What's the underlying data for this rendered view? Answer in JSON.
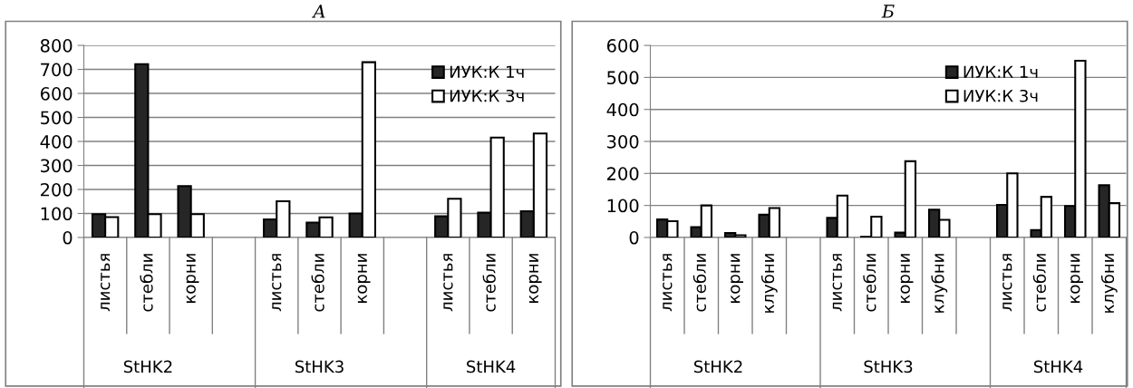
{
  "chart_data": [
    {
      "type": "bar",
      "title": "А",
      "categories": [
        "листья",
        "стебли",
        "корни",
        null,
        "листья",
        "стебли",
        "корни",
        null,
        "листья",
        "стебли",
        "корни"
      ],
      "series": [
        {
          "name": "ИУК:К 1ч",
          "color": "#262626",
          "values": [
            97,
            722,
            214,
            null,
            75,
            62,
            100,
            null,
            88,
            103,
            109
          ]
        },
        {
          "name": "ИУК:К 3ч",
          "color": "#ffffff",
          "values": [
            85,
            97,
            97,
            null,
            151,
            84,
            730,
            null,
            161,
            416,
            433
          ]
        }
      ],
      "annotations": [
        "StHK2",
        "StHK3",
        "StHK4"
      ],
      "ylim": [
        0,
        800
      ],
      "yticks": [
        0,
        100,
        200,
        300,
        400,
        500,
        600,
        700,
        800
      ],
      "grid": "y",
      "legend": "top right"
    },
    {
      "type": "bar",
      "title": "Б",
      "categories": [
        "листья",
        "стебли",
        "корни",
        "клубни",
        null,
        "листья",
        "стебли",
        "корни",
        "клубни",
        null,
        "листья",
        "стебли",
        "корни",
        "клубни"
      ],
      "series": [
        {
          "name": "ИУК:К 1ч",
          "color": "#262626",
          "values": [
            56,
            32,
            14,
            71,
            null,
            61,
            2,
            15,
            87,
            null,
            102,
            23,
            98,
            163
          ]
        },
        {
          "name": "ИУК:К 3ч",
          "color": "#ffffff",
          "values": [
            51,
            100,
            7,
            92,
            null,
            131,
            65,
            238,
            55,
            null,
            200,
            127,
            552,
            107
          ]
        }
      ],
      "annotations": [
        "StHK2",
        "StHK3",
        "StHK4"
      ],
      "ylim": [
        0,
        600
      ],
      "yticks": [
        0,
        100,
        200,
        300,
        400,
        500,
        600
      ],
      "grid": "y",
      "legend": "top right"
    }
  ]
}
